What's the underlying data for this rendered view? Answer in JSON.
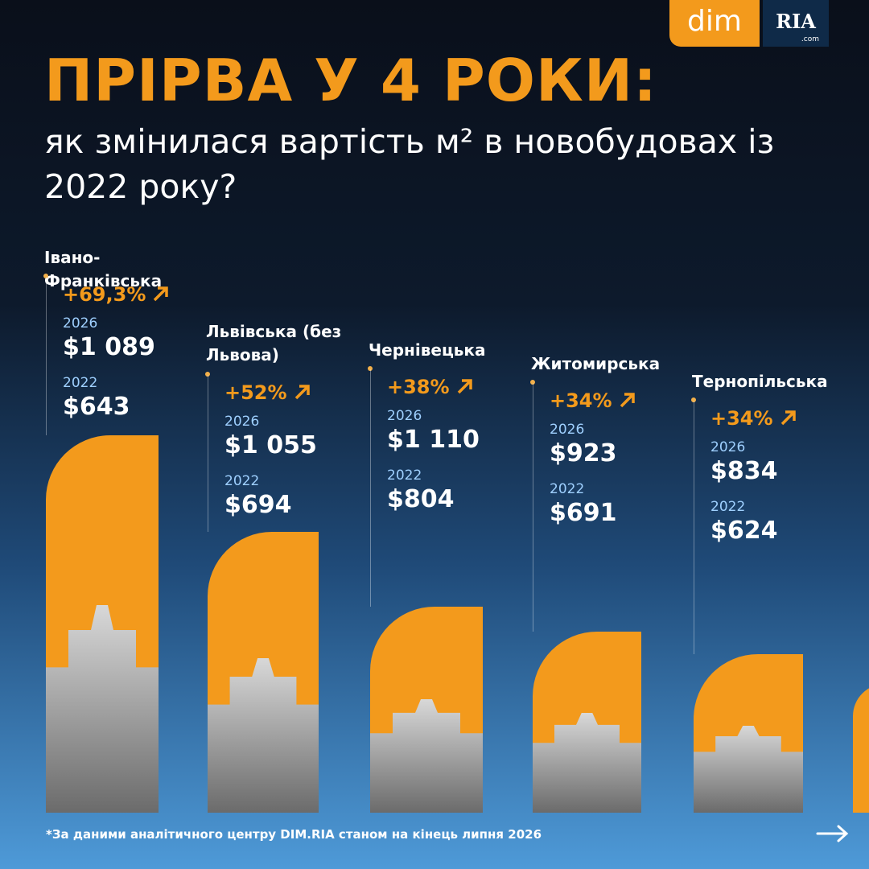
{
  "brand": {
    "logo": "dim",
    "partner": "RIA",
    "partner_domain": ".com"
  },
  "header": {
    "title": "ПРІРВА У 4 РОКИ:",
    "subtitle": "як змінилася вартість м² в новобудовах із 2022 року?"
  },
  "regions": [
    {
      "name": "Івано-Франківська",
      "change": "+69,3%",
      "year_new": "2026",
      "price_new": "$1 089",
      "year_old": "2022",
      "price_old": "$643"
    },
    {
      "name": "Львівська (без Львова)",
      "change": "+52%",
      "year_new": "2026",
      "price_new": "$1 055",
      "year_old": "2022",
      "price_old": "$694"
    },
    {
      "name": "Чернівецька",
      "change": "+38%",
      "year_new": "2026",
      "price_new": "$1 110",
      "year_old": "2022",
      "price_old": "$804"
    },
    {
      "name": "Житомирська",
      "change": "+34%",
      "year_new": "2026",
      "price_new": "$923",
      "year_old": "2022",
      "price_old": "$691"
    },
    {
      "name": "Тернопільська",
      "change": "+34%",
      "year_new": "2026",
      "price_new": "$834",
      "year_old": "2022",
      "price_old": "$624"
    }
  ],
  "footnote": "*За даними аналітичного центру DIM.RIA станом на кінець липня 2026"
}
